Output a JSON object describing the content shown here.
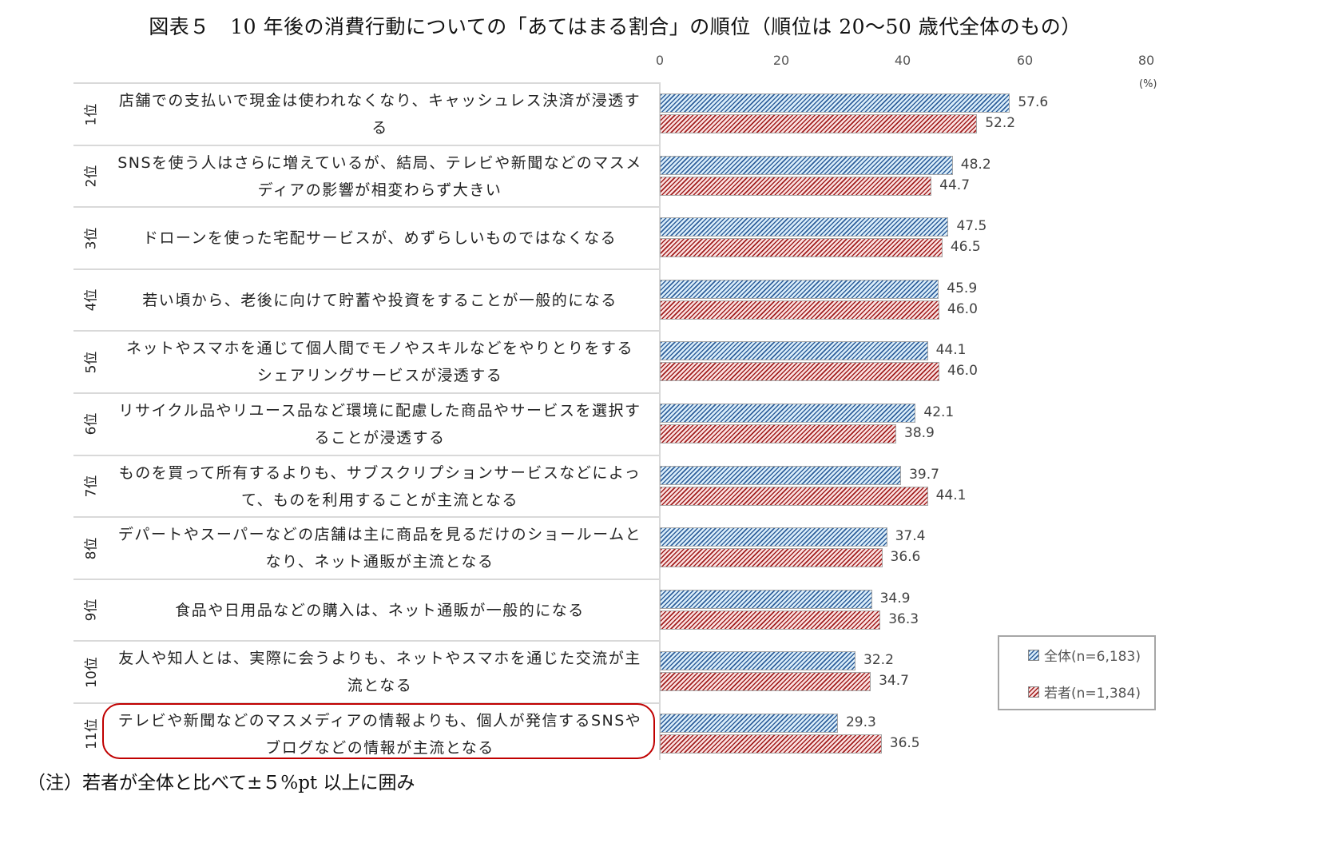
{
  "title": "図表５　10 年後の消費行動についての「あてはまる割合」の順位（順位は 20～50 歳代全体のもの）",
  "note": "（注）若者が全体と比べて±５%pt 以上に囲み",
  "unit_label": "(%)",
  "colors": {
    "all": "#2e5e9a",
    "young": "#a01d1d",
    "highlight": "#c00000"
  },
  "chart_data": {
    "type": "bar",
    "orientation": "horizontal",
    "title": "図表５　10 年後の消費行動についての「あてはまる割合」の順位（順位は 20～50 歳代全体のもの）",
    "xlabel": "(%)",
    "ylabel": "",
    "xlim": [
      0,
      80
    ],
    "x_ticks": [
      0,
      20,
      40,
      60,
      80
    ],
    "grid": false,
    "legend_position": "lower right",
    "categories": [
      "店舗での支払いで現金は使われなくなり、キャッシュレス決済が浸透する",
      "SNSを使う人はさらに増えているが、結局、テレビや新聞などのマスメディアの影響が相変わらず大きい",
      "ドローンを使った宅配サービスが、めずらしいものではなくなる",
      "若い頃から、老後に向けて貯蓄や投資をすることが一般的になる",
      "ネットやスマホを通じて個人間でモノやスキルなどをやりとりをするシェアリングサービスが浸透する",
      "リサイクル品やリユース品など環境に配慮した商品やサービスを選択することが浸透する",
      "ものを買って所有するよりも、サブスクリプションサービスなどによって、ものを利用することが主流となる",
      "デパートやスーパーなどの店舗は主に商品を見るだけのショールームとなり、ネット通販が主流となる",
      "食品や日用品などの購入は、ネット通販が一般的になる",
      "友人や知人とは、実際に会うよりも、ネットやスマホを通じた交流が主流となる",
      "テレビや新聞などのマスメディアの情報よりも、個人が発信するSNSやブログなどの情報が主流となる"
    ],
    "series": [
      {
        "name": "全体(n=6,183)",
        "values": [
          57.6,
          48.2,
          47.5,
          45.9,
          44.1,
          42.1,
          39.7,
          37.4,
          34.9,
          32.2,
          29.3
        ]
      },
      {
        "name": "若者(n=1,384)",
        "values": [
          52.2,
          44.7,
          46.5,
          46.0,
          46.0,
          38.9,
          44.1,
          36.6,
          36.3,
          34.7,
          36.5
        ]
      }
    ],
    "highlighted_category_index": 10
  },
  "axis": {
    "ticks": [
      "0",
      "20",
      "40",
      "60",
      "80"
    ]
  },
  "rows": [
    {
      "rank": "1位",
      "line1": "店舗での支払いで現金は使われなくなり、キャッシュレス決済が浸透す",
      "line2": "る",
      "all": "57.6",
      "young": "52.2"
    },
    {
      "rank": "2位",
      "line1": "SNSを使う人はさらに増えているが、結局、テレビや新聞などのマスメ",
      "line2": "ディアの影響が相変わらず大きい",
      "all": "48.2",
      "young": "44.7"
    },
    {
      "rank": "3位",
      "line1": "ドローンを使った宅配サービスが、めずらしいものではなくなる",
      "line2": "",
      "all": "47.5",
      "young": "46.5"
    },
    {
      "rank": "4位",
      "line1": "若い頃から、老後に向けて貯蓄や投資をすることが一般的になる",
      "line2": "",
      "all": "45.9",
      "young": "46.0"
    },
    {
      "rank": "5位",
      "line1": "ネットやスマホを通じて個人間でモノやスキルなどをやりとりをする",
      "line2": "シェアリングサービスが浸透する",
      "all": "44.1",
      "young": "46.0"
    },
    {
      "rank": "6位",
      "line1": "リサイクル品やリユース品など環境に配慮した商品やサービスを選択す",
      "line2": "ることが浸透する",
      "all": "42.1",
      "young": "38.9"
    },
    {
      "rank": "7位",
      "line1": "ものを買って所有するよりも、サブスクリプションサービスなどによっ",
      "line2": "て、ものを利用することが主流となる",
      "all": "39.7",
      "young": "44.1"
    },
    {
      "rank": "8位",
      "line1": "デパートやスーパーなどの店舗は主に商品を見るだけのショールームと",
      "line2": "なり、ネット通販が主流となる",
      "all": "37.4",
      "young": "36.6"
    },
    {
      "rank": "9位",
      "line1": "食品や日用品などの購入は、ネット通販が一般的になる",
      "line2": "",
      "all": "34.9",
      "young": "36.3"
    },
    {
      "rank": "10位",
      "line1": "友人や知人とは、実際に会うよりも、ネットやスマホを通じた交流が主",
      "line2": "流となる",
      "all": "32.2",
      "young": "34.7"
    },
    {
      "rank": "11位",
      "line1": "テレビや新聞などのマスメディアの情報よりも、個人が発信するSNSや",
      "line2": "ブログなどの情報が主流となる",
      "all": "29.3",
      "young": "36.5"
    }
  ],
  "legend": {
    "all": "全体(n=6,183)",
    "young": "若者(n=1,384)"
  }
}
